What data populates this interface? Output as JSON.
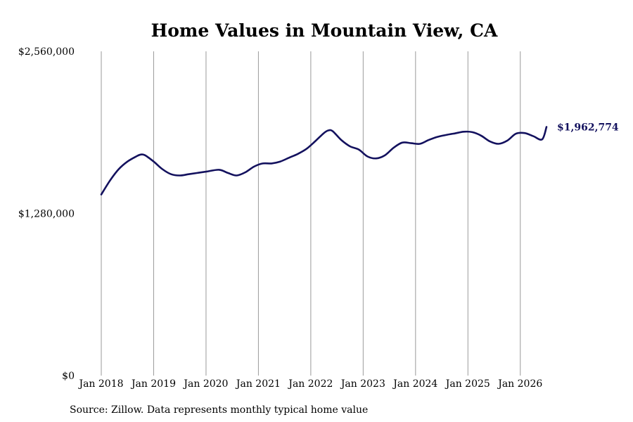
{
  "chart_data": {
    "type": "line",
    "title": "Home Values in Mountain View, CA",
    "source": "Source: Zillow. Data represents monthly typical home value",
    "xlabel": "",
    "ylabel": "",
    "xlim": [
      "2018-01",
      "2026-07"
    ],
    "ylim": [
      0,
      2560000
    ],
    "y_ticks": [
      0,
      1280000,
      2560000
    ],
    "y_tick_labels": [
      "$0",
      "$1,280,000",
      "$2,560,000"
    ],
    "x_ticks": [
      "2018-01",
      "2019-01",
      "2020-01",
      "2021-01",
      "2022-01",
      "2023-01",
      "2024-01",
      "2025-01",
      "2026-01"
    ],
    "x_tick_labels": [
      "Jan 2018",
      "Jan 2019",
      "Jan 2020",
      "Jan 2021",
      "Jan 2022",
      "Jan 2023",
      "Jan 2024",
      "Jan 2025",
      "Jan 2026"
    ],
    "grid": "vertical",
    "line_color": "#13115e",
    "series": [
      {
        "x": [
          "2018-01",
          "2018-03",
          "2018-05",
          "2018-07",
          "2018-09",
          "2018-10",
          "2018-11",
          "2019-01",
          "2019-03",
          "2019-05",
          "2019-07",
          "2019-09",
          "2019-11",
          "2020-01",
          "2020-04",
          "2020-06",
          "2020-08",
          "2020-10",
          "2020-12",
          "2021-02",
          "2021-04",
          "2021-06",
          "2021-08",
          "2021-10",
          "2021-12",
          "2022-02",
          "2022-04",
          "2022-05",
          "2022-06",
          "2022-08",
          "2022-10",
          "2022-12",
          "2023-02",
          "2023-04",
          "2023-06",
          "2023-08",
          "2023-10",
          "2023-12",
          "2024-02",
          "2024-04",
          "2024-06",
          "2024-08",
          "2024-10",
          "2024-12",
          "2025-02",
          "2025-04",
          "2025-06",
          "2025-08",
          "2025-10",
          "2025-12",
          "2026-02",
          "2026-04",
          "2026-06",
          "2026-07"
        ],
        "values": [
          1430000,
          1540000,
          1630000,
          1690000,
          1730000,
          1745000,
          1740000,
          1690000,
          1630000,
          1590000,
          1580000,
          1590000,
          1600000,
          1610000,
          1625000,
          1600000,
          1580000,
          1605000,
          1650000,
          1675000,
          1675000,
          1690000,
          1720000,
          1750000,
          1790000,
          1850000,
          1915000,
          1935000,
          1930000,
          1860000,
          1810000,
          1785000,
          1730000,
          1715000,
          1740000,
          1800000,
          1840000,
          1835000,
          1830000,
          1860000,
          1885000,
          1900000,
          1912000,
          1925000,
          1922000,
          1895000,
          1850000,
          1830000,
          1855000,
          1910000,
          1915000,
          1890000,
          1865000,
          1962774
        ]
      }
    ],
    "end_label": "$1,962,774"
  }
}
